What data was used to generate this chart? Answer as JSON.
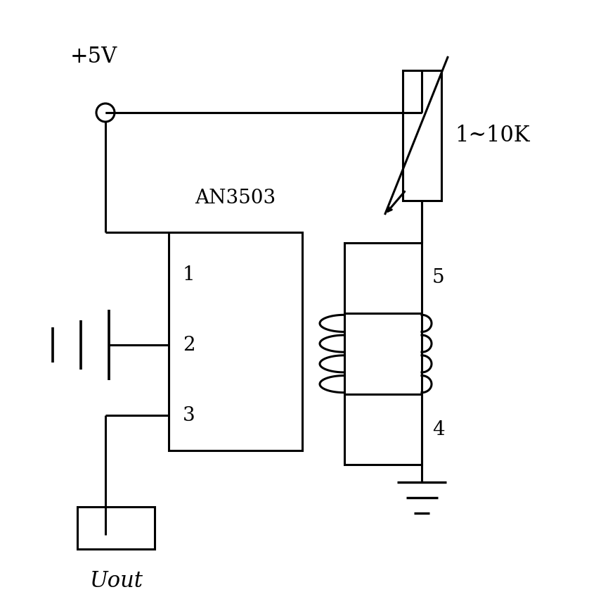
{
  "background_color": "#ffffff",
  "line_color": "#000000",
  "line_width": 2.2,
  "fig_width": 8.38,
  "fig_height": 8.68,
  "labels": {
    "vcc": "+5V",
    "ic_name": "AN3503",
    "pin1": "1",
    "pin2": "2",
    "pin3": "3",
    "pin4": "4",
    "pin5": "5",
    "resistor": "1~10K",
    "uout": "Uout"
  }
}
